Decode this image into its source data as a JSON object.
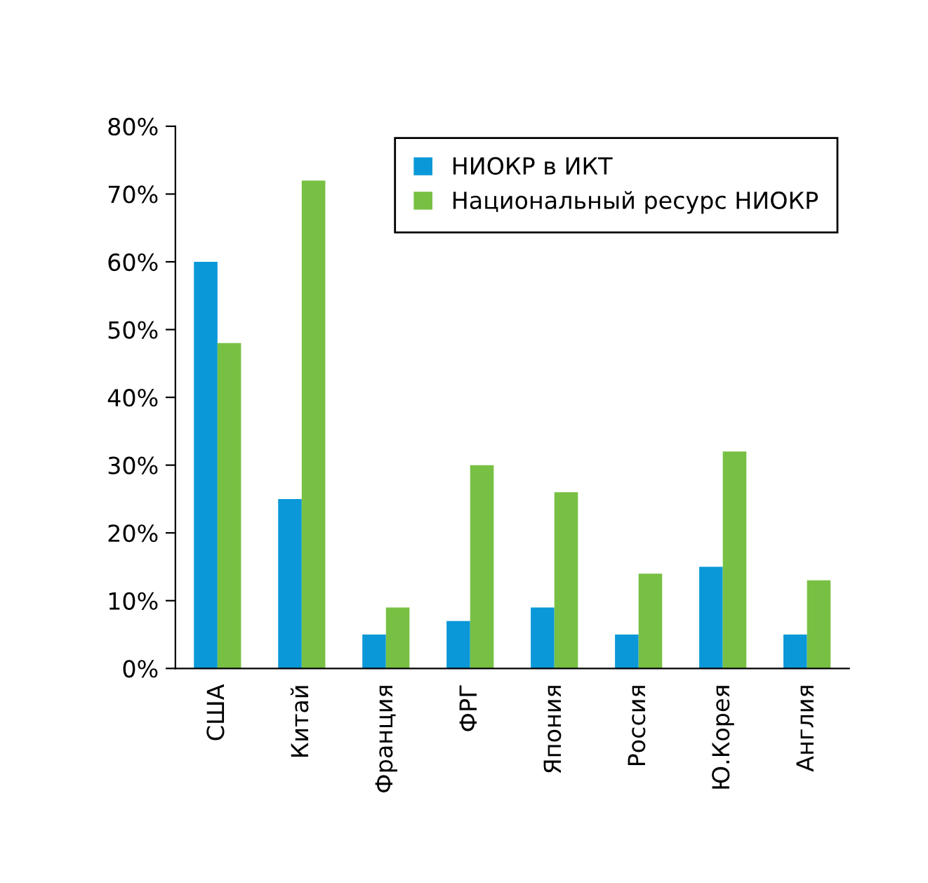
{
  "chart_data": {
    "type": "bar",
    "categories": [
      "США",
      "Китай",
      "Франция",
      "ФРГ",
      "Япония",
      "Россия",
      "Ю.Корея",
      "Англия"
    ],
    "series": [
      {
        "name": "НИОКР в ИКТ",
        "color": "#0a98d8",
        "values": [
          60,
          25,
          5,
          7,
          9,
          5,
          15,
          5
        ]
      },
      {
        "name": "Национальный ресурс НИОКР",
        "color": "#78c043",
        "values": [
          48,
          72,
          9,
          30,
          26,
          14,
          32,
          13
        ]
      }
    ],
    "ylim": [
      0,
      80
    ],
    "yticks": [
      {
        "value": 0,
        "label": "0%"
      },
      {
        "value": 10,
        "label": "10%"
      },
      {
        "value": 20,
        "label": "20%"
      },
      {
        "value": 30,
        "label": "30%"
      },
      {
        "value": 40,
        "label": "40%"
      },
      {
        "value": 50,
        "label": "50%"
      },
      {
        "value": 60,
        "label": "60%"
      },
      {
        "value": 70,
        "label": "70%"
      },
      {
        "value": 80,
        "label": "80%"
      }
    ],
    "grid": false,
    "legend": "top right"
  }
}
